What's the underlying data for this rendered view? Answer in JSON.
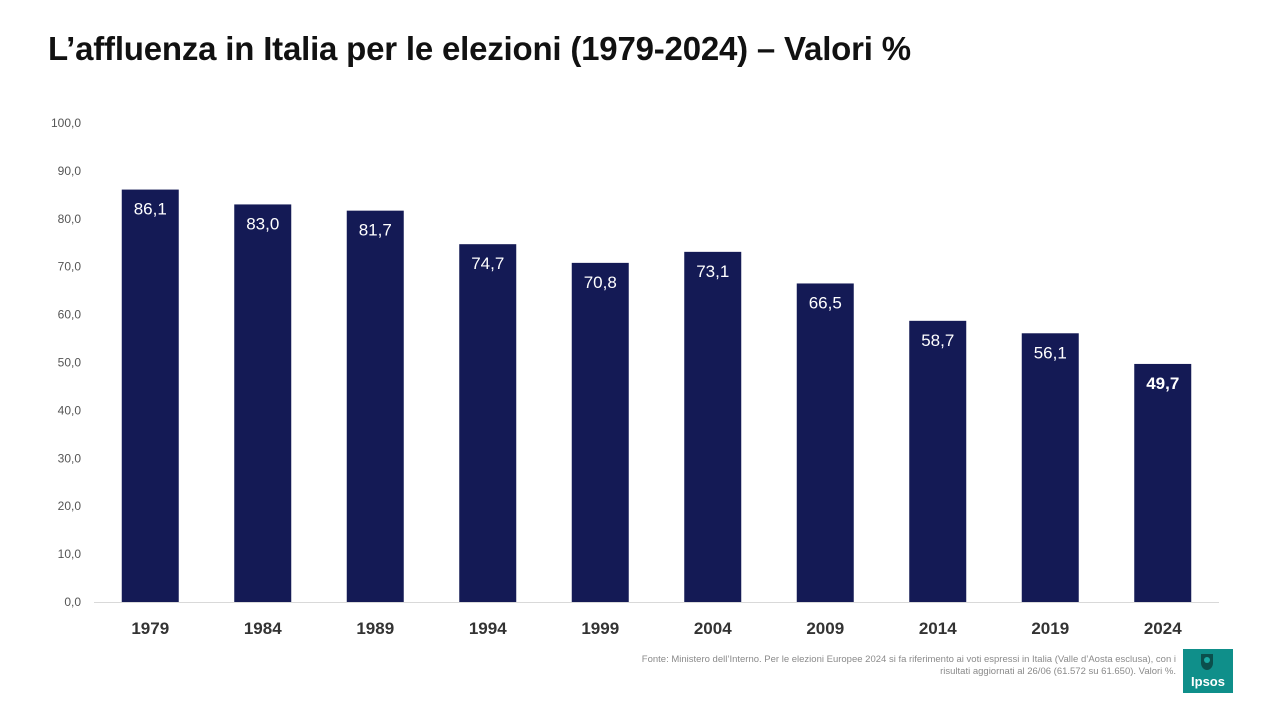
{
  "title": "L’affluenza in Italia per le elezioni (1979-2024) – Valori %",
  "footnote": "Fonte: Ministero dell’Interno. Per le elezioni Europee 2024 si fa riferimento ai voti espressi in Italia (Valle d’Aosta esclusa), con i risultati aggiornati al 26/06 (61.572 su 61.650). Valori %.",
  "logo": {
    "text": "Ipsos"
  },
  "colors": {
    "bar": "#141a55",
    "bar_label": "#ffffff",
    "axis_line": "#d9d9d9",
    "tick_text": "#555555",
    "category_text": "#333333",
    "logo_bg": "#0f8f8a"
  },
  "chart_data": {
    "type": "bar",
    "title": "L’affluenza in Italia per le elezioni (1979-2024) – Valori %",
    "xlabel": "",
    "ylabel": "",
    "categories": [
      "1979",
      "1984",
      "1989",
      "1994",
      "1999",
      "2004",
      "2009",
      "2014",
      "2019",
      "2024"
    ],
    "values": [
      86.1,
      83.0,
      81.7,
      74.7,
      70.8,
      73.1,
      66.5,
      58.7,
      56.1,
      49.7
    ],
    "data_labels": [
      "86,1",
      "83,0",
      "81,7",
      "74,7",
      "70,8",
      "73,1",
      "66,5",
      "58,7",
      "56,1",
      "49,7"
    ],
    "highlight_category": "2024",
    "ylim": [
      0,
      100
    ],
    "yticks": [
      "0,0",
      "10,0",
      "20,0",
      "30,0",
      "40,0",
      "50,0",
      "60,0",
      "70,0",
      "80,0",
      "90,0",
      "100,0"
    ],
    "grid": false,
    "legend": "none"
  }
}
